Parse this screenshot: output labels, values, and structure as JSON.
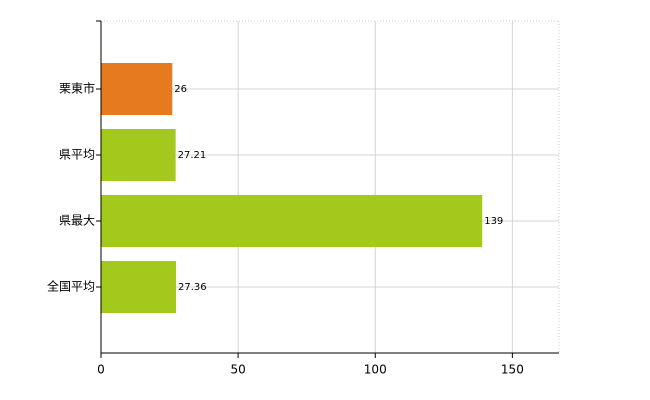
{
  "chart_data": {
    "type": "bar",
    "orientation": "horizontal",
    "categories": [
      "栗東市",
      "県平均",
      "県最大",
      "全国平均"
    ],
    "values": [
      26,
      27.21,
      139,
      27.36
    ],
    "colors": [
      "#e57a1f",
      "#a2c91c",
      "#a2c91c",
      "#a2c91c"
    ],
    "xlim": [
      0,
      167
    ],
    "xticks": [
      0,
      50,
      100,
      150
    ],
    "grid": true
  }
}
